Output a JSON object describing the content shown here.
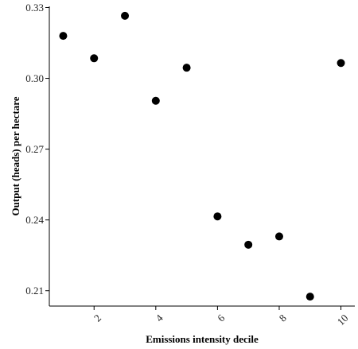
{
  "chart_data": {
    "type": "scatter",
    "title": "",
    "xlabel": "Emissions intensity decile",
    "ylabel": "Output (heads) per hectare",
    "x": [
      1,
      2,
      3,
      4,
      5,
      6,
      7,
      8,
      9,
      10
    ],
    "y": [
      0.318,
      0.3085,
      0.3265,
      0.2905,
      0.3045,
      0.2415,
      0.2295,
      0.233,
      0.2075,
      0.3065
    ],
    "xticks": [
      2,
      4,
      6,
      8,
      10
    ],
    "xtick_labels": [
      "2",
      "4",
      "6",
      "8",
      "10"
    ],
    "yticks": [
      0.21,
      0.24,
      0.27,
      0.3,
      0.33
    ],
    "ytick_labels": [
      "0.21",
      "0.24",
      "0.27",
      "0.30",
      "0.33"
    ],
    "xlim": [
      0.55,
      10.45
    ],
    "ylim": [
      0.2035,
      0.3305
    ],
    "grid": false,
    "legend": "none",
    "point_color": "#000000",
    "axis_color": "#000000"
  }
}
